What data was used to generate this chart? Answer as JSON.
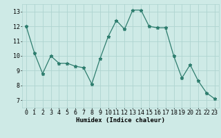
{
  "x": [
    0,
    1,
    2,
    3,
    4,
    5,
    6,
    7,
    8,
    9,
    10,
    11,
    12,
    13,
    14,
    15,
    16,
    17,
    18,
    19,
    20,
    21,
    22,
    23
  ],
  "y": [
    12.0,
    10.2,
    8.8,
    10.0,
    9.5,
    9.5,
    9.3,
    9.2,
    8.1,
    9.8,
    11.3,
    12.4,
    11.8,
    13.1,
    13.1,
    12.0,
    11.9,
    11.9,
    10.0,
    8.5,
    9.4,
    8.3,
    7.5,
    7.1
  ],
  "line_color": "#2e7d6e",
  "marker": "*",
  "markersize": 3.5,
  "linewidth": 0.9,
  "bg_color": "#ceeae6",
  "grid_color": "#aed4d0",
  "xlabel": "Humidex (Indice chaleur)",
  "xlabel_fontsize": 6.5,
  "tick_fontsize": 6,
  "ylim": [
    6.5,
    13.5
  ],
  "xlim": [
    -0.5,
    23.5
  ],
  "yticks": [
    7,
    8,
    9,
    10,
    11,
    12,
    13
  ],
  "xticks": [
    0,
    1,
    2,
    3,
    4,
    5,
    6,
    7,
    8,
    9,
    10,
    11,
    12,
    13,
    14,
    15,
    16,
    17,
    18,
    19,
    20,
    21,
    22,
    23
  ]
}
